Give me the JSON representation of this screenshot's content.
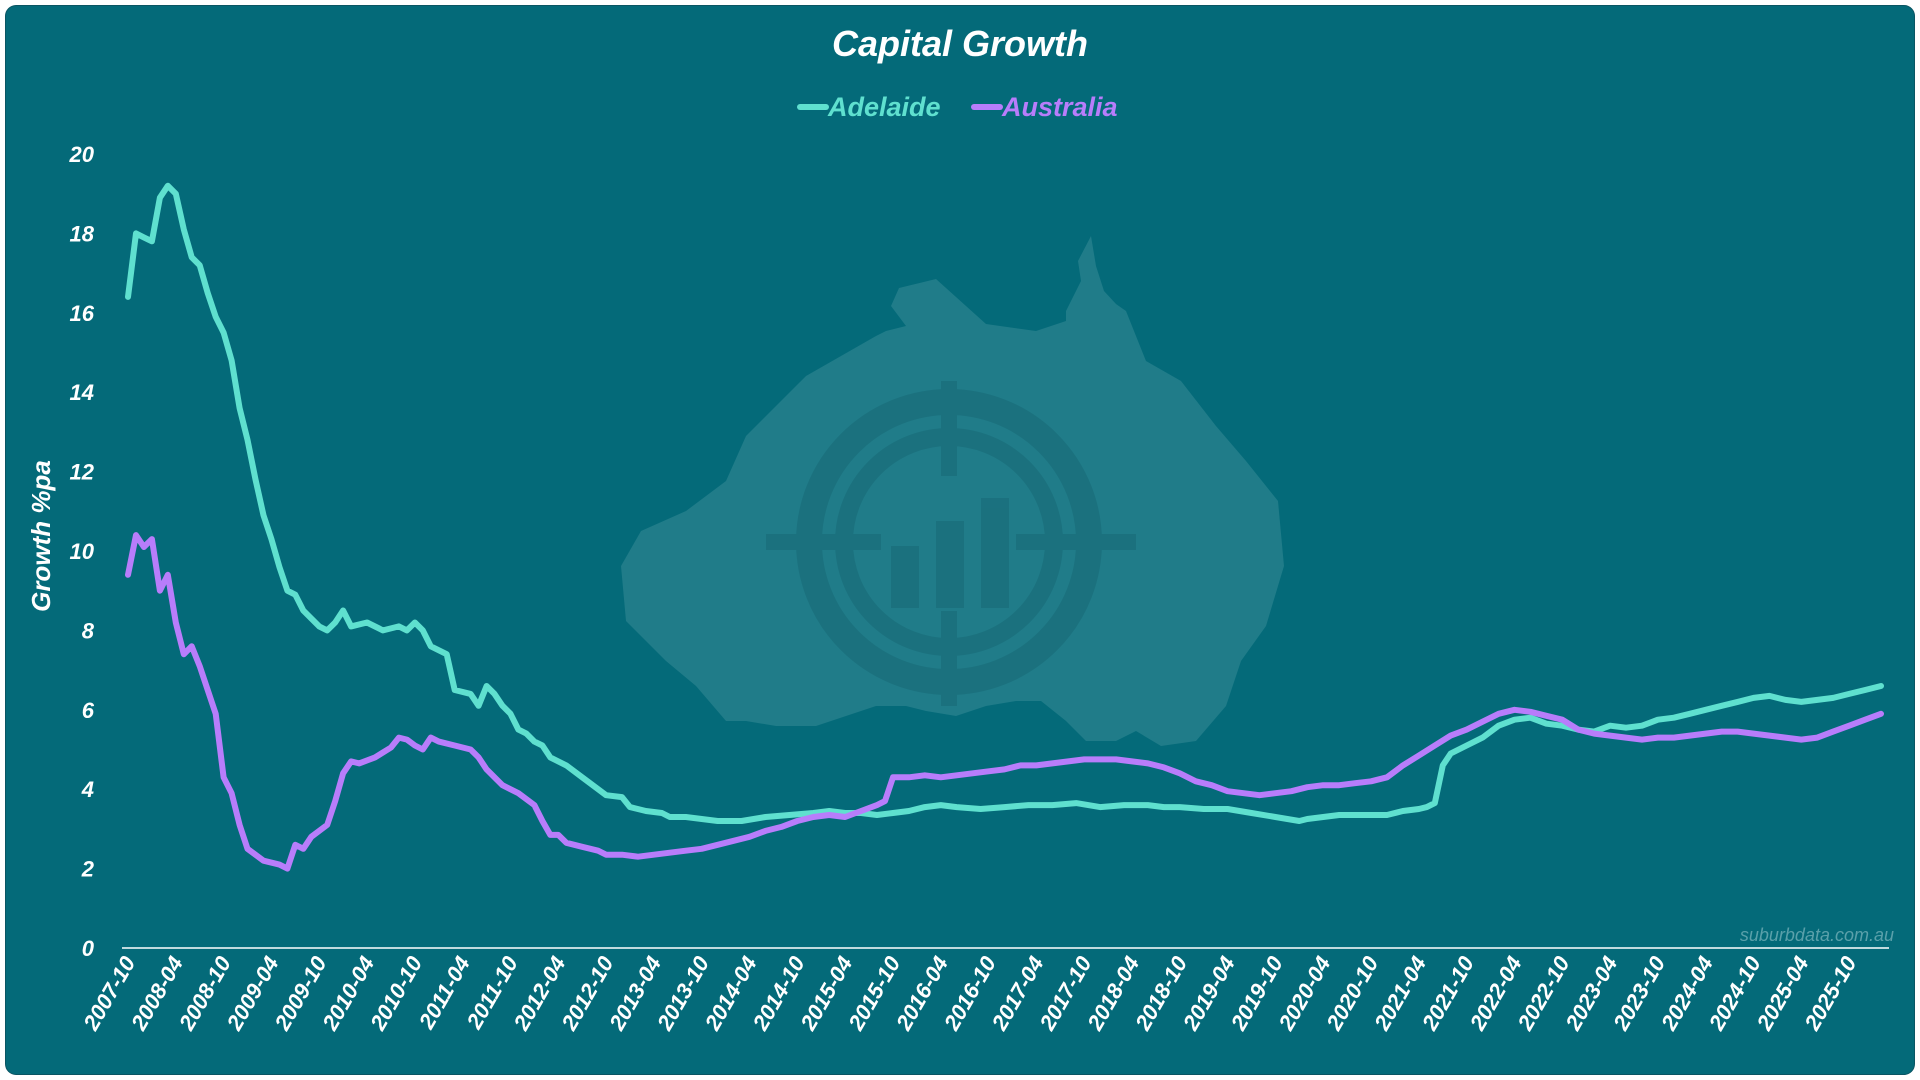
{
  "watermark": {
    "url": "suburbdata.com.au",
    "logo": "australia-target-logo"
  },
  "colors": {
    "background": "#046a79",
    "adelaide": "#5fe0cf",
    "australia": "#b87dfb",
    "axis": "#ffffff"
  },
  "chart_data": {
    "type": "line",
    "title": "Capital Growth",
    "xlabel": "",
    "ylabel": "Growth %pa",
    "ylim": [
      0,
      20
    ],
    "yticks": [
      "0",
      "2",
      "4",
      "6",
      "8",
      "10",
      "12",
      "14",
      "16",
      "18",
      "20"
    ],
    "xlim": [
      "2007-10",
      "2026-03"
    ],
    "xtick_labels": [
      "2007-10",
      "2008-04",
      "2008-10",
      "2009-04",
      "2009-10",
      "2010-04",
      "2010-10",
      "2011-04",
      "2011-10",
      "2012-04",
      "2012-10",
      "2013-04",
      "2013-10",
      "2014-04",
      "2014-10",
      "2015-04",
      "2015-10",
      "2016-04",
      "2016-10",
      "2017-04",
      "2017-10",
      "2018-04",
      "2018-10",
      "2019-04",
      "2019-10",
      "2020-04",
      "2020-10",
      "2021-04",
      "2021-10",
      "2022-04",
      "2022-10",
      "2023-04",
      "2023-10",
      "2024-04",
      "2024-10",
      "2025-04",
      "2025-10"
    ],
    "legend": "top-center",
    "grid": false,
    "series": [
      {
        "name": "Adelaide",
        "color": "#5fe0cf",
        "points": [
          [
            "2007-10",
            16.4
          ],
          [
            "2007-11",
            18.0
          ],
          [
            "2007-12",
            17.9
          ],
          [
            "2008-01",
            17.8
          ],
          [
            "2008-02",
            18.9
          ],
          [
            "2008-03",
            19.2
          ],
          [
            "2008-04",
            19.0
          ],
          [
            "2008-05",
            18.1
          ],
          [
            "2008-06",
            17.4
          ],
          [
            "2008-07",
            17.2
          ],
          [
            "2008-08",
            16.5
          ],
          [
            "2008-09",
            15.9
          ],
          [
            "2008-10",
            15.5
          ],
          [
            "2008-11",
            14.8
          ],
          [
            "2008-12",
            13.6
          ],
          [
            "2009-01",
            12.8
          ],
          [
            "2009-02",
            11.8
          ],
          [
            "2009-03",
            10.9
          ],
          [
            "2009-04",
            10.3
          ],
          [
            "2009-05",
            9.6
          ],
          [
            "2009-06",
            9.0
          ],
          [
            "2009-07",
            8.9
          ],
          [
            "2009-08",
            8.5
          ],
          [
            "2009-09",
            8.3
          ],
          [
            "2009-10",
            8.1
          ],
          [
            "2009-11",
            8.0
          ],
          [
            "2009-12",
            8.2
          ],
          [
            "2010-01",
            8.5
          ],
          [
            "2010-02",
            8.1
          ],
          [
            "2010-04",
            8.2
          ],
          [
            "2010-06",
            8.0
          ],
          [
            "2010-08",
            8.1
          ],
          [
            "2010-09",
            8.0
          ],
          [
            "2010-10",
            8.2
          ],
          [
            "2010-11",
            8.0
          ],
          [
            "2010-12",
            7.6
          ],
          [
            "2011-02",
            7.4
          ],
          [
            "2011-03",
            6.5
          ],
          [
            "2011-05",
            6.4
          ],
          [
            "2011-06",
            6.1
          ],
          [
            "2011-07",
            6.6
          ],
          [
            "2011-08",
            6.4
          ],
          [
            "2011-09",
            6.1
          ],
          [
            "2011-10",
            5.9
          ],
          [
            "2011-11",
            5.5
          ],
          [
            "2011-12",
            5.4
          ],
          [
            "2012-01",
            5.2
          ],
          [
            "2012-02",
            5.1
          ],
          [
            "2012-03",
            4.8
          ],
          [
            "2012-05",
            4.6
          ],
          [
            "2012-07",
            4.3
          ],
          [
            "2012-09",
            4.0
          ],
          [
            "2012-10",
            3.85
          ],
          [
            "2012-12",
            3.8
          ],
          [
            "2013-01",
            3.55
          ],
          [
            "2013-03",
            3.45
          ],
          [
            "2013-05",
            3.4
          ],
          [
            "2013-06",
            3.3
          ],
          [
            "2013-08",
            3.3
          ],
          [
            "2013-10",
            3.25
          ],
          [
            "2013-12",
            3.2
          ],
          [
            "2014-03",
            3.2
          ],
          [
            "2014-06",
            3.3
          ],
          [
            "2014-09",
            3.35
          ],
          [
            "2014-12",
            3.4
          ],
          [
            "2015-02",
            3.45
          ],
          [
            "2015-04",
            3.4
          ],
          [
            "2015-06",
            3.4
          ],
          [
            "2015-08",
            3.35
          ],
          [
            "2015-10",
            3.4
          ],
          [
            "2015-12",
            3.45
          ],
          [
            "2016-02",
            3.55
          ],
          [
            "2016-04",
            3.6
          ],
          [
            "2016-06",
            3.55
          ],
          [
            "2016-09",
            3.5
          ],
          [
            "2016-12",
            3.55
          ],
          [
            "2017-03",
            3.6
          ],
          [
            "2017-06",
            3.6
          ],
          [
            "2017-09",
            3.65
          ],
          [
            "2017-12",
            3.55
          ],
          [
            "2018-03",
            3.6
          ],
          [
            "2018-06",
            3.6
          ],
          [
            "2018-08",
            3.55
          ],
          [
            "2018-10",
            3.55
          ],
          [
            "2019-01",
            3.5
          ],
          [
            "2019-04",
            3.5
          ],
          [
            "2019-07",
            3.4
          ],
          [
            "2019-10",
            3.3
          ],
          [
            "2020-01",
            3.2
          ],
          [
            "2020-02",
            3.25
          ],
          [
            "2020-04",
            3.3
          ],
          [
            "2020-06",
            3.35
          ],
          [
            "2020-09",
            3.35
          ],
          [
            "2020-12",
            3.35
          ],
          [
            "2021-02",
            3.45
          ],
          [
            "2021-04",
            3.5
          ],
          [
            "2021-05",
            3.55
          ],
          [
            "2021-06",
            3.65
          ],
          [
            "2021-07",
            4.6
          ],
          [
            "2021-08",
            4.9
          ],
          [
            "2021-10",
            5.1
          ],
          [
            "2021-12",
            5.3
          ],
          [
            "2022-02",
            5.6
          ],
          [
            "2022-04",
            5.75
          ],
          [
            "2022-06",
            5.8
          ],
          [
            "2022-08",
            5.65
          ],
          [
            "2022-10",
            5.6
          ],
          [
            "2022-12",
            5.5
          ],
          [
            "2023-02",
            5.45
          ],
          [
            "2023-04",
            5.6
          ],
          [
            "2023-06",
            5.55
          ],
          [
            "2023-08",
            5.6
          ],
          [
            "2023-10",
            5.75
          ],
          [
            "2023-12",
            5.8
          ],
          [
            "2024-02",
            5.9
          ],
          [
            "2024-04",
            6.0
          ],
          [
            "2024-06",
            6.1
          ],
          [
            "2024-08",
            6.2
          ],
          [
            "2024-10",
            6.3
          ],
          [
            "2024-12",
            6.35
          ],
          [
            "2025-02",
            6.25
          ],
          [
            "2025-04",
            6.2
          ],
          [
            "2025-06",
            6.25
          ],
          [
            "2025-08",
            6.3
          ],
          [
            "2025-10",
            6.4
          ],
          [
            "2025-12",
            6.5
          ],
          [
            "2026-02",
            6.6
          ]
        ]
      },
      {
        "name": "Australia",
        "color": "#b87dfb",
        "points": [
          [
            "2007-10",
            9.4
          ],
          [
            "2007-11",
            10.4
          ],
          [
            "2007-12",
            10.1
          ],
          [
            "2008-01",
            10.3
          ],
          [
            "2008-02",
            9.0
          ],
          [
            "2008-03",
            9.4
          ],
          [
            "2008-04",
            8.2
          ],
          [
            "2008-05",
            7.4
          ],
          [
            "2008-06",
            7.6
          ],
          [
            "2008-07",
            7.1
          ],
          [
            "2008-08",
            6.5
          ],
          [
            "2008-09",
            5.9
          ],
          [
            "2008-10",
            4.3
          ],
          [
            "2008-11",
            3.9
          ],
          [
            "2008-12",
            3.1
          ],
          [
            "2009-01",
            2.5
          ],
          [
            "2009-03",
            2.2
          ],
          [
            "2009-05",
            2.1
          ],
          [
            "2009-06",
            2.0
          ],
          [
            "2009-07",
            2.6
          ],
          [
            "2009-08",
            2.5
          ],
          [
            "2009-09",
            2.8
          ],
          [
            "2009-11",
            3.1
          ],
          [
            "2009-12",
            3.7
          ],
          [
            "2010-01",
            4.4
          ],
          [
            "2010-02",
            4.7
          ],
          [
            "2010-03",
            4.65
          ],
          [
            "2010-05",
            4.8
          ],
          [
            "2010-07",
            5.05
          ],
          [
            "2010-08",
            5.3
          ],
          [
            "2010-09",
            5.25
          ],
          [
            "2010-10",
            5.1
          ],
          [
            "2010-11",
            5.0
          ],
          [
            "2010-12",
            5.3
          ],
          [
            "2011-01",
            5.2
          ],
          [
            "2011-03",
            5.1
          ],
          [
            "2011-05",
            5.0
          ],
          [
            "2011-06",
            4.8
          ],
          [
            "2011-07",
            4.5
          ],
          [
            "2011-09",
            4.1
          ],
          [
            "2011-11",
            3.9
          ],
          [
            "2012-01",
            3.6
          ],
          [
            "2012-02",
            3.2
          ],
          [
            "2012-03",
            2.85
          ],
          [
            "2012-04",
            2.85
          ],
          [
            "2012-05",
            2.65
          ],
          [
            "2012-07",
            2.55
          ],
          [
            "2012-09",
            2.45
          ],
          [
            "2012-10",
            2.35
          ],
          [
            "2012-12",
            2.35
          ],
          [
            "2013-02",
            2.3
          ],
          [
            "2013-04",
            2.35
          ],
          [
            "2013-06",
            2.4
          ],
          [
            "2013-08",
            2.45
          ],
          [
            "2013-10",
            2.5
          ],
          [
            "2013-12",
            2.6
          ],
          [
            "2014-02",
            2.7
          ],
          [
            "2014-04",
            2.8
          ],
          [
            "2014-06",
            2.95
          ],
          [
            "2014-08",
            3.05
          ],
          [
            "2014-10",
            3.2
          ],
          [
            "2014-12",
            3.3
          ],
          [
            "2015-02",
            3.35
          ],
          [
            "2015-04",
            3.3
          ],
          [
            "2015-06",
            3.45
          ],
          [
            "2015-08",
            3.6
          ],
          [
            "2015-09",
            3.7
          ],
          [
            "2015-10",
            4.3
          ],
          [
            "2015-12",
            4.3
          ],
          [
            "2016-02",
            4.35
          ],
          [
            "2016-04",
            4.3
          ],
          [
            "2016-06",
            4.35
          ],
          [
            "2016-08",
            4.4
          ],
          [
            "2016-10",
            4.45
          ],
          [
            "2016-12",
            4.5
          ],
          [
            "2017-02",
            4.6
          ],
          [
            "2017-04",
            4.6
          ],
          [
            "2017-06",
            4.65
          ],
          [
            "2017-08",
            4.7
          ],
          [
            "2017-10",
            4.75
          ],
          [
            "2017-12",
            4.75
          ],
          [
            "2018-02",
            4.75
          ],
          [
            "2018-04",
            4.7
          ],
          [
            "2018-06",
            4.65
          ],
          [
            "2018-08",
            4.55
          ],
          [
            "2018-10",
            4.4
          ],
          [
            "2018-12",
            4.2
          ],
          [
            "2019-02",
            4.1
          ],
          [
            "2019-04",
            3.95
          ],
          [
            "2019-06",
            3.9
          ],
          [
            "2019-08",
            3.85
          ],
          [
            "2019-10",
            3.9
          ],
          [
            "2019-12",
            3.95
          ],
          [
            "2020-02",
            4.05
          ],
          [
            "2020-04",
            4.1
          ],
          [
            "2020-06",
            4.1
          ],
          [
            "2020-08",
            4.15
          ],
          [
            "2020-10",
            4.2
          ],
          [
            "2020-12",
            4.3
          ],
          [
            "2021-02",
            4.6
          ],
          [
            "2021-04",
            4.85
          ],
          [
            "2021-06",
            5.1
          ],
          [
            "2021-08",
            5.35
          ],
          [
            "2021-10",
            5.5
          ],
          [
            "2021-12",
            5.7
          ],
          [
            "2022-02",
            5.9
          ],
          [
            "2022-04",
            6.0
          ],
          [
            "2022-06",
            5.95
          ],
          [
            "2022-08",
            5.85
          ],
          [
            "2022-10",
            5.75
          ],
          [
            "2022-12",
            5.5
          ],
          [
            "2023-02",
            5.4
          ],
          [
            "2023-04",
            5.35
          ],
          [
            "2023-06",
            5.3
          ],
          [
            "2023-08",
            5.25
          ],
          [
            "2023-10",
            5.3
          ],
          [
            "2023-12",
            5.3
          ],
          [
            "2024-02",
            5.35
          ],
          [
            "2024-04",
            5.4
          ],
          [
            "2024-06",
            5.45
          ],
          [
            "2024-08",
            5.45
          ],
          [
            "2024-10",
            5.4
          ],
          [
            "2024-12",
            5.35
          ],
          [
            "2025-02",
            5.3
          ],
          [
            "2025-04",
            5.25
          ],
          [
            "2025-06",
            5.3
          ],
          [
            "2025-08",
            5.45
          ],
          [
            "2025-10",
            5.6
          ],
          [
            "2025-12",
            5.75
          ],
          [
            "2026-02",
            5.9
          ]
        ]
      }
    ]
  }
}
